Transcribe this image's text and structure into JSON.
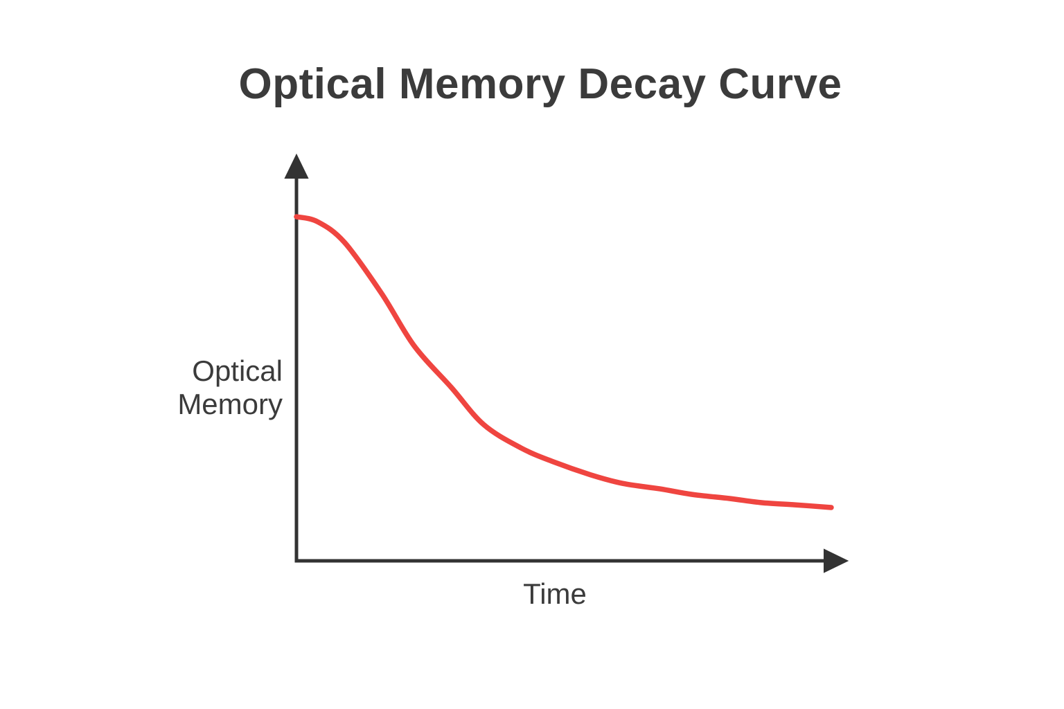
{
  "title": "Optical Memory Decay Curve",
  "colors": {
    "axis": "#333333",
    "curve": "#ef4540",
    "text": "#3b3b3b",
    "background": "#ffffff"
  },
  "chart_data": {
    "type": "line",
    "title": "Optical Memory Decay Curve",
    "xlabel": "Time",
    "ylabel": "Optical Memory",
    "axes_numeric": false,
    "grid": false,
    "legend": "none",
    "xlim": [
      0,
      10
    ],
    "ylim": [
      0,
      1.15
    ],
    "x": [
      0,
      0.4,
      0.9,
      1.6,
      2.2,
      2.9,
      3.5,
      4.2,
      4.8,
      5.5,
      6.1,
      6.8,
      7.4,
      8.1,
      8.7,
      9.3,
      10
    ],
    "series": [
      {
        "name": "Optical Memory",
        "color": "#ef4540",
        "values": [
          1.0,
          0.985,
          0.925,
          0.775,
          0.625,
          0.503,
          0.396,
          0.328,
          0.288,
          0.25,
          0.225,
          0.209,
          0.193,
          0.181,
          0.169,
          0.163,
          0.155
        ]
      }
    ]
  }
}
